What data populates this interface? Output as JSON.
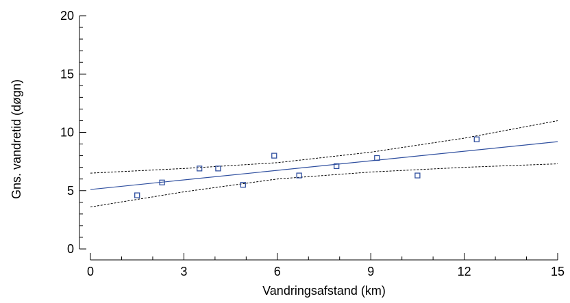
{
  "chart_data": {
    "type": "scatter",
    "title": "",
    "xlabel": "Vandringsafstand (km)",
    "ylabel": "Gns. vandretid (døgn)",
    "xlim": [
      0,
      15
    ],
    "ylim": [
      0,
      20
    ],
    "xticks": [
      0,
      3,
      6,
      9,
      12,
      15
    ],
    "yticks": [
      0,
      5,
      10,
      15,
      20
    ],
    "xtick_labels": [
      "0",
      "3",
      "6",
      "9",
      "12",
      "15"
    ],
    "ytick_labels": [
      "0",
      "5",
      "10",
      "15",
      "20"
    ],
    "grid": false,
    "points": [
      {
        "x": 1.5,
        "y": 4.6
      },
      {
        "x": 2.3,
        "y": 5.7
      },
      {
        "x": 3.5,
        "y": 6.9
      },
      {
        "x": 4.1,
        "y": 6.9
      },
      {
        "x": 4.9,
        "y": 5.5
      },
      {
        "x": 5.9,
        "y": 8.0
      },
      {
        "x": 6.7,
        "y": 6.3
      },
      {
        "x": 7.9,
        "y": 7.1
      },
      {
        "x": 9.2,
        "y": 7.8
      },
      {
        "x": 10.5,
        "y": 6.3
      },
      {
        "x": 12.4,
        "y": 9.4
      }
    ],
    "fit_line": {
      "x": [
        0,
        15
      ],
      "y": [
        5.1,
        9.2
      ]
    },
    "confidence_band": {
      "x": [
        0,
        3,
        6,
        9,
        12,
        15
      ],
      "upper": [
        6.5,
        6.9,
        7.4,
        8.3,
        9.5,
        11.0
      ],
      "lower": [
        3.6,
        4.9,
        6.0,
        6.6,
        7.0,
        7.3
      ]
    },
    "colors": {
      "points": "#2f4f9f",
      "fit": "#2f4f9f",
      "band": "#000000",
      "axes": "#000000"
    }
  }
}
